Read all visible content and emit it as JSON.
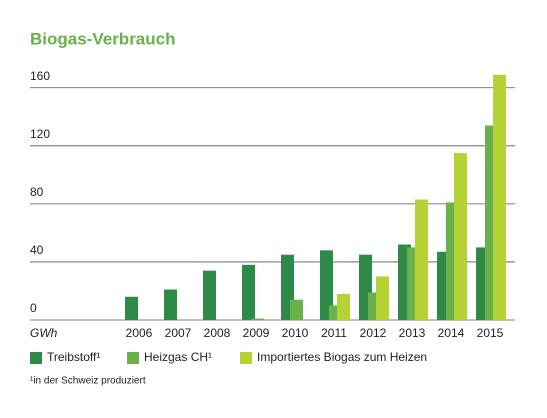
{
  "chart_data": {
    "type": "bar",
    "title": "Biogas-Verbrauch",
    "y_label": "GWh",
    "categories": [
      "2006",
      "2007",
      "2008",
      "2009",
      "2010",
      "2011",
      "2012",
      "2013",
      "2014",
      "2015"
    ],
    "series": [
      {
        "name": "Treibstoff¹",
        "color": "#2e8b47",
        "values": [
          16,
          21,
          34,
          38,
          45,
          48,
          45,
          52,
          47,
          50
        ]
      },
      {
        "name": "Heizgas CH¹",
        "color": "#6ab04c",
        "values": [
          null,
          null,
          null,
          1,
          14,
          10,
          19,
          50,
          81,
          134
        ]
      },
      {
        "name": "Importiertes Biogas zum Heizen",
        "color": "#b5d334",
        "values": [
          null,
          null,
          null,
          null,
          null,
          18,
          30,
          83,
          115,
          169
        ]
      }
    ],
    "ylim": [
      0,
      175
    ],
    "yticks": [
      0,
      40,
      80,
      120,
      160
    ],
    "grid": true,
    "footnote": "¹in der Schweiz produziert"
  }
}
